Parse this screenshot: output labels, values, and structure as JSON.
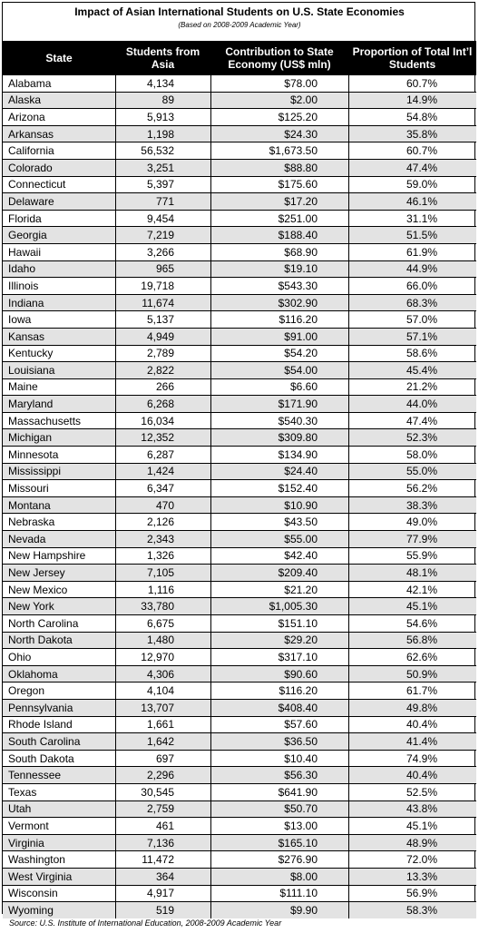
{
  "title": "Impact of Asian International Students on U.S. State Economies",
  "subtitle": "(Based on 2008-2009 Academic Year)",
  "columns": [
    "State",
    "Students from Asia",
    "Contribution to State Economy (US$ mln)",
    "Proportion of Total Int’l Students"
  ],
  "rows": [
    [
      "Alabama",
      "4,134",
      "$78.00",
      "60.7%"
    ],
    [
      "Alaska",
      "89",
      "$2.00",
      "14.9%"
    ],
    [
      "Arizona",
      "5,913",
      "$125.20",
      "54.8%"
    ],
    [
      "Arkansas",
      "1,198",
      "$24.30",
      "35.8%"
    ],
    [
      "California",
      "56,532",
      "$1,673.50",
      "60.7%"
    ],
    [
      "Colorado",
      "3,251",
      "$88.80",
      "47.4%"
    ],
    [
      "Connecticut",
      "5,397",
      "$175.60",
      "59.0%"
    ],
    [
      "Delaware",
      "771",
      "$17.20",
      "46.1%"
    ],
    [
      "Florida",
      "9,454",
      "$251.00",
      "31.1%"
    ],
    [
      "Georgia",
      "7,219",
      "$188.40",
      "51.5%"
    ],
    [
      "Hawaii",
      "3,266",
      "$68.90",
      "61.9%"
    ],
    [
      "Idaho",
      "965",
      "$19.10",
      "44.9%"
    ],
    [
      "Illinois",
      "19,718",
      "$543.30",
      "66.0%"
    ],
    [
      "Indiana",
      "11,674",
      "$302.90",
      "68.3%"
    ],
    [
      "Iowa",
      "5,137",
      "$116.20",
      "57.0%"
    ],
    [
      "Kansas",
      "4,949",
      "$91.00",
      "57.1%"
    ],
    [
      "Kentucky",
      "2,789",
      "$54.20",
      "58.6%"
    ],
    [
      "Louisiana",
      "2,822",
      "$54.00",
      "45.4%"
    ],
    [
      "Maine",
      "266",
      "$6.60",
      "21.2%"
    ],
    [
      "Maryland",
      "6,268",
      "$171.90",
      "44.0%"
    ],
    [
      "Massachusetts",
      "16,034",
      "$540.30",
      "47.4%"
    ],
    [
      "Michigan",
      "12,352",
      "$309.80",
      "52.3%"
    ],
    [
      "Minnesota",
      "6,287",
      "$134.90",
      "58.0%"
    ],
    [
      "Mississippi",
      "1,424",
      "$24.40",
      "55.0%"
    ],
    [
      "Missouri",
      "6,347",
      "$152.40",
      "56.2%"
    ],
    [
      "Montana",
      "470",
      "$10.90",
      "38.3%"
    ],
    [
      "Nebraska",
      "2,126",
      "$43.50",
      "49.0%"
    ],
    [
      "Nevada",
      "2,343",
      "$55.00",
      "77.9%"
    ],
    [
      "New Hampshire",
      "1,326",
      "$42.40",
      "55.9%"
    ],
    [
      "New Jersey",
      "7,105",
      "$209.40",
      "48.1%"
    ],
    [
      "New Mexico",
      "1,116",
      "$21.20",
      "42.1%"
    ],
    [
      "New York",
      "33,780",
      "$1,005.30",
      "45.1%"
    ],
    [
      "North Carolina",
      "6,675",
      "$151.10",
      "54.6%"
    ],
    [
      "North Dakota",
      "1,480",
      "$29.20",
      "56.8%"
    ],
    [
      "Ohio",
      "12,970",
      "$317.10",
      "62.6%"
    ],
    [
      "Oklahoma",
      "4,306",
      "$90.60",
      "50.9%"
    ],
    [
      "Oregon",
      "4,104",
      "$116.20",
      "61.7%"
    ],
    [
      "Pennsylvania",
      "13,707",
      "$408.40",
      "49.8%"
    ],
    [
      "Rhode Island",
      "1,661",
      "$57.60",
      "40.4%"
    ],
    [
      "South Carolina",
      "1,642",
      "$36.50",
      "41.4%"
    ],
    [
      "South Dakota",
      "697",
      "$10.40",
      "74.9%"
    ],
    [
      "Tennessee",
      "2,296",
      "$56.30",
      "40.4%"
    ],
    [
      "Texas",
      "30,545",
      "$641.90",
      "52.5%"
    ],
    [
      "Utah",
      "2,759",
      "$50.70",
      "43.8%"
    ],
    [
      "Vermont",
      "461",
      "$13.00",
      "45.1%"
    ],
    [
      "Virginia",
      "7,136",
      "$165.10",
      "48.9%"
    ],
    [
      "Washington",
      "11,472",
      "$276.90",
      "72.0%"
    ],
    [
      "West Virginia",
      "364",
      "$8.00",
      "13.3%"
    ],
    [
      "Wisconsin",
      "4,917",
      "$111.10",
      "56.9%"
    ],
    [
      "Wyoming",
      "519",
      "$9.90",
      "58.3%"
    ]
  ],
  "source": "Source: U.S. Institute of International Education, 2008-2009 Academic Year"
}
